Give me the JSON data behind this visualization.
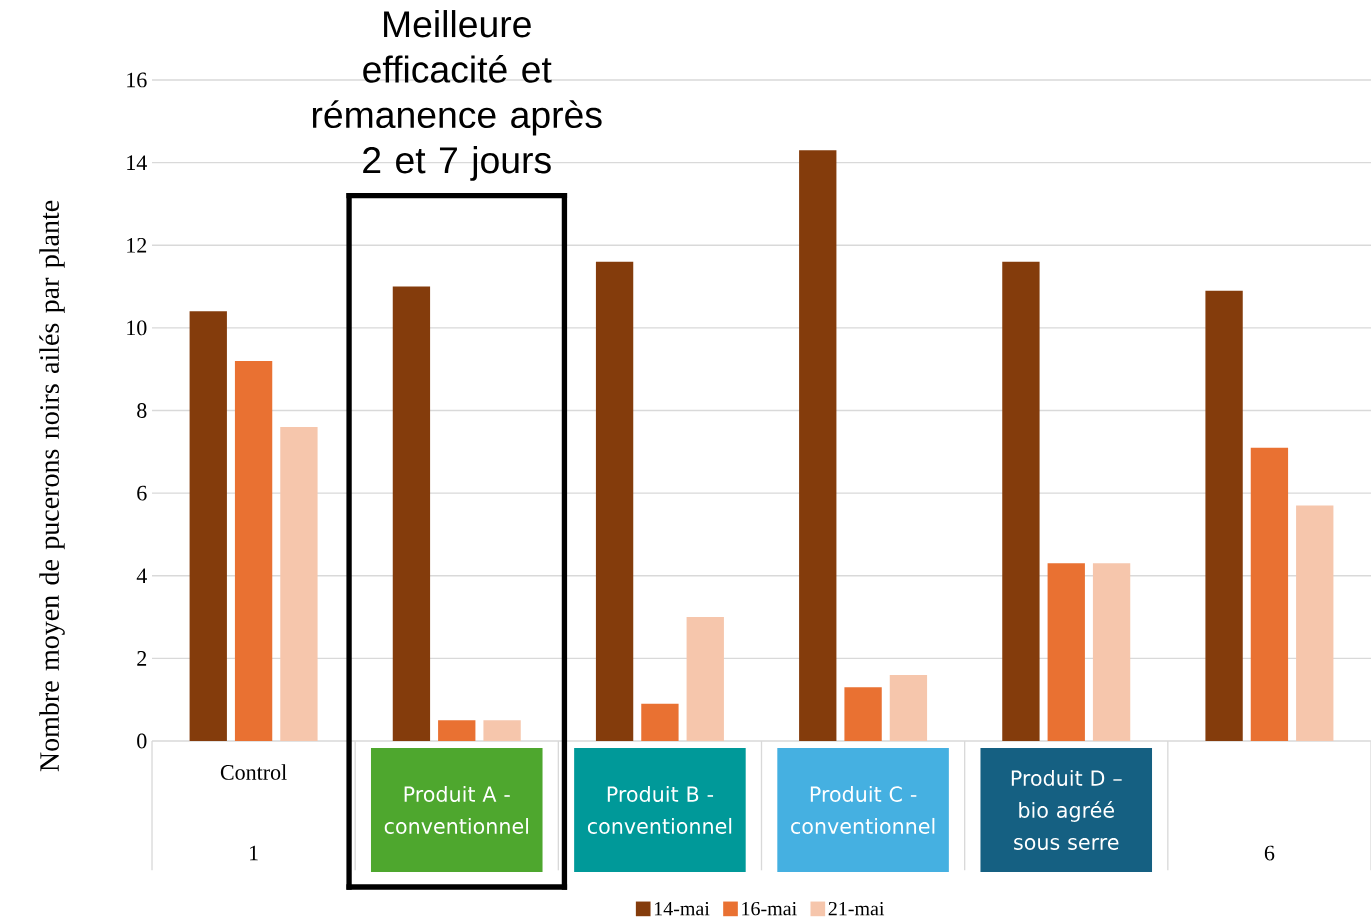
{
  "chart_data": {
    "type": "bar",
    "ylabel": "Nombre moyen de pucerons noirs ailés par plante",
    "categories": [
      "Control",
      "Produit A - conventionnel",
      "Produit B - conventionnel",
      "Produit C - conventionnel",
      "Produit D – bio agréé sous serre",
      null
    ],
    "series": [
      {
        "name": "14-mai",
        "color": "#843c0c",
        "values": [
          10.4,
          11.0,
          11.6,
          14.3,
          11.6,
          10.9
        ]
      },
      {
        "name": "16-mai",
        "color": "#e97132",
        "values": [
          9.2,
          0.5,
          0.9,
          1.3,
          4.3,
          7.1
        ]
      },
      {
        "name": "21-mai",
        "color": "#f6c6ac",
        "values": [
          7.6,
          0.5,
          3.0,
          1.6,
          4.3,
          5.7
        ]
      }
    ],
    "ylim": [
      0,
      16
    ],
    "yticks": [
      0,
      2,
      4,
      6,
      8,
      10,
      12,
      14,
      16
    ],
    "grid": "y",
    "legend": "bottom",
    "annotations": [
      "Meilleure efficacité et rémanence après 2 et 7 jours",
      "1",
      "6"
    ]
  }
}
